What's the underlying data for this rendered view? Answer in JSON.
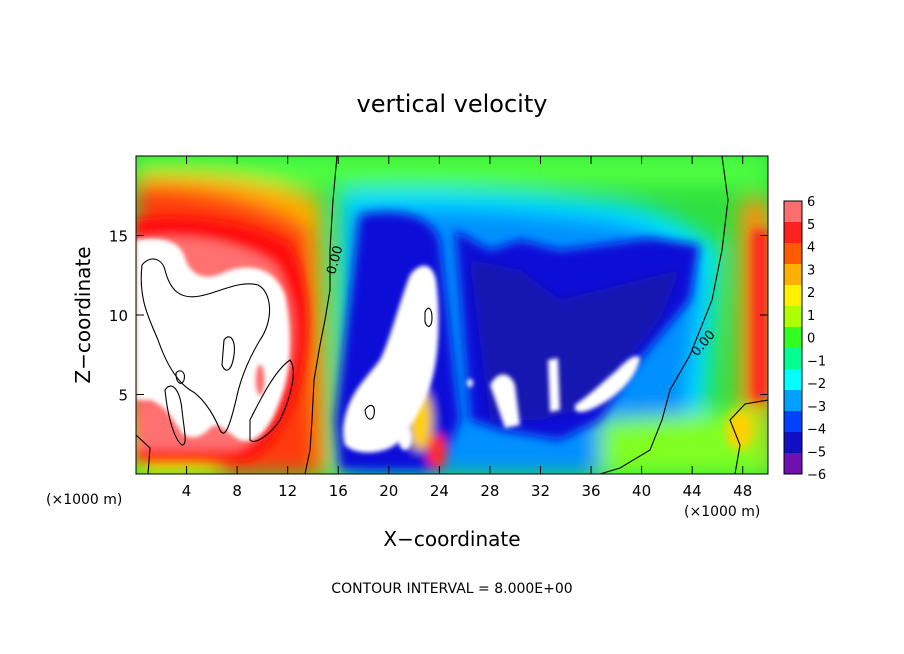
{
  "chart_data": {
    "type": "heatmap",
    "title": "vertical velocity",
    "xlabel": "X−coordinate",
    "ylabel": "Z−coordinate",
    "x_unit_label": "(×1000 m)",
    "x_unit_label_right": "(×1000 m)",
    "xlim": [
      0,
      50
    ],
    "ylim": [
      0,
      20
    ],
    "x_ticks": [
      "4",
      "8",
      "12",
      "16",
      "20",
      "24",
      "28",
      "32",
      "36",
      "40",
      "44",
      "48"
    ],
    "x_tick_values": [
      4,
      8,
      12,
      16,
      20,
      24,
      28,
      32,
      36,
      40,
      44,
      48
    ],
    "y_ticks": [
      "5",
      "10",
      "15"
    ],
    "y_tick_values": [
      5,
      10,
      15
    ],
    "colorbar": {
      "labels": [
        "6",
        "5",
        "4",
        "3",
        "2",
        "1",
        "0",
        "−1",
        "−2",
        "−3",
        "−4",
        "−5",
        "−6"
      ],
      "values": [
        6,
        5,
        4,
        3,
        2,
        1,
        0,
        -1,
        -2,
        -3,
        -4,
        -5,
        -6
      ],
      "colors": [
        "#ff6e6e",
        "#ff2020",
        "#ff5a00",
        "#ffb000",
        "#fff000",
        "#b0ff00",
        "#30ff20",
        "#00ff90",
        "#00ffff",
        "#00a0ff",
        "#0040ff",
        "#1010c0",
        "#7010b0"
      ]
    },
    "contour_labels": [
      "0.00",
      "0.00"
    ],
    "footnote": "CONTOUR INTERVAL = 8.000E+00",
    "background_color": "#2fe040",
    "saturation_color": "#ffffff"
  }
}
